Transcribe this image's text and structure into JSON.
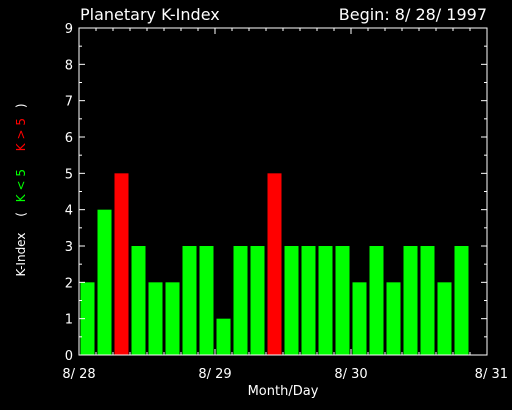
{
  "chart_data": {
    "type": "bar",
    "title": "Planetary K-Index",
    "subtitle": "Begin: 8/ 28/ 1997",
    "xlabel": "Month/Day",
    "ylabel": {
      "main": "K-Index",
      "open": "(",
      "normal": "K < 5",
      "high": "K > 5",
      "close": ")"
    },
    "ylim": [
      0,
      9
    ],
    "yticks": [
      "0",
      "1",
      "2",
      "3",
      "4",
      "5",
      "6",
      "7",
      "8",
      "9"
    ],
    "xlim": [
      0,
      24
    ],
    "xticks": [
      {
        "label": "8/ 28",
        "pos": 0
      },
      {
        "label": "8/ 29",
        "pos": 8
      },
      {
        "label": "8/ 30",
        "pos": 16
      },
      {
        "label": "8/ 31",
        "pos": 24
      }
    ],
    "values": [
      2,
      4,
      5,
      3,
      2,
      2,
      3,
      3,
      1,
      3,
      3,
      5,
      3,
      3,
      3,
      3,
      2,
      3,
      2,
      3,
      3,
      2,
      3
    ],
    "threshold": 5,
    "colors": {
      "normal": "#00ff00",
      "high": "#ff0000",
      "axis": "#ffffff",
      "background": "#000000"
    },
    "grid": false,
    "legend": "none"
  }
}
